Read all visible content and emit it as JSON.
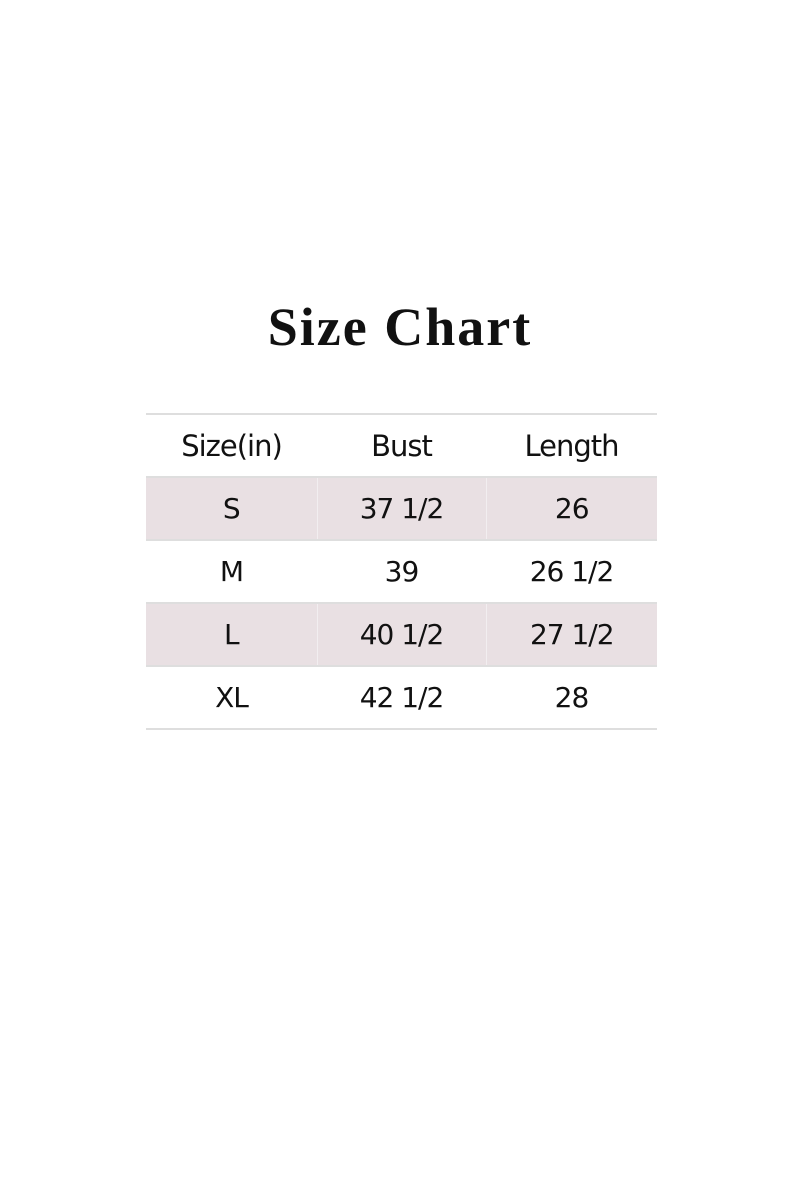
{
  "title": "Size Chart",
  "colors": {
    "shaded_row": "#e9e0e3",
    "rule": "#dedede"
  },
  "table": {
    "headers": [
      "Size(in)",
      "Bust",
      "Length"
    ],
    "rows": [
      [
        "S",
        "37 1/2",
        "26"
      ],
      [
        "M",
        "39",
        "26 1/2"
      ],
      [
        "L",
        "40 1/2",
        "27 1/2"
      ],
      [
        "XL",
        "42 1/2",
        "28"
      ]
    ]
  }
}
